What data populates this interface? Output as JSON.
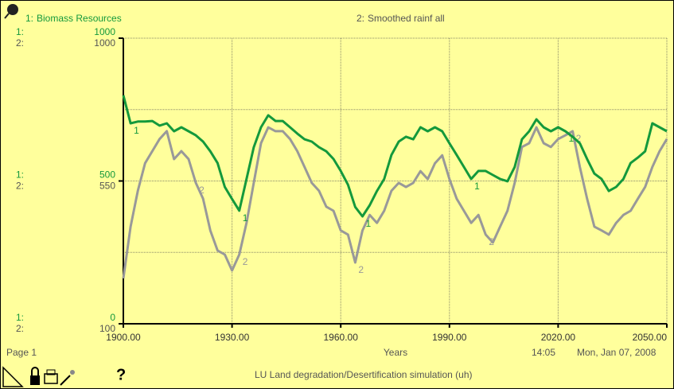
{
  "chart_data": {
    "type": "line",
    "xlabel": "Years",
    "page_label": "Page 1",
    "time": "14:05",
    "date": "Mon, Jan 07, 2008",
    "footer": "LU Land degradation/Desertification simulation (uh)",
    "help": "?",
    "x": [
      1900,
      1902,
      1904,
      1906,
      1908,
      1910,
      1912,
      1914,
      1916,
      1918,
      1920,
      1922,
      1924,
      1926,
      1928,
      1930,
      1932,
      1934,
      1936,
      1938,
      1940,
      1942,
      1944,
      1946,
      1948,
      1950,
      1952,
      1954,
      1956,
      1958,
      1960,
      1962,
      1964,
      1966,
      1968,
      1970,
      1972,
      1974,
      1976,
      1978,
      1980,
      1982,
      1984,
      1986,
      1988,
      1990,
      1992,
      1994,
      1996,
      1998,
      2000,
      2002,
      2004,
      2006,
      2008,
      2010,
      2012,
      2014,
      2016,
      2018,
      2020,
      2022,
      2024,
      2026,
      2028,
      2030,
      2032,
      2034,
      2036,
      2038,
      2040,
      2042,
      2044,
      2046,
      2048,
      2050
    ],
    "xlim": [
      1900,
      2050
    ],
    "xticks": [
      {
        "value": 1900,
        "label": "1900.00"
      },
      {
        "value": 1930,
        "label": "1930.00"
      },
      {
        "value": 1960,
        "label": "1960.00"
      },
      {
        "value": 1990,
        "label": "1990.00"
      },
      {
        "value": 2020,
        "label": "2020.00"
      },
      {
        "value": 2050,
        "label": "2050.00"
      }
    ],
    "ylim": [
      0,
      1000
    ],
    "yticks": [
      0,
      500,
      1000
    ],
    "y2lim": [
      100,
      1000
    ],
    "y2ticks": [
      100,
      550,
      1000
    ],
    "grid": true,
    "series": [
      {
        "name": "Biomass  Resources",
        "prefix": "1:",
        "marker": "1",
        "color": "#14993c",
        "axis": "y",
        "values": [
          800,
          702,
          708,
          708,
          710,
          694,
          702,
          674,
          688,
          674,
          660,
          638,
          604,
          563,
          479,
          437,
          396,
          507,
          618,
          688,
          730,
          710,
          710,
          688,
          666,
          646,
          638,
          618,
          604,
          577,
          535,
          487,
          409,
          376,
          415,
          465,
          507,
          591,
          638,
          655,
          646,
          688,
          674,
          688,
          674,
          632,
          591,
          549,
          507,
          535,
          535,
          521,
          507,
          499,
          549,
          646,
          674,
          716,
          688,
          674,
          688,
          674,
          655,
          632,
          577,
          526,
          507,
          465,
          479,
          507,
          563,
          582,
          604,
          702,
          688,
          674
        ]
      },
      {
        "name": "Smoothed rainf all",
        "prefix": "2:",
        "marker": "2",
        "color": "#999999",
        "axis": "y2",
        "values": [
          243,
          406,
          519,
          606,
          644,
          682,
          707,
          619,
          644,
          619,
          544,
          494,
          394,
          331,
          318,
          268,
          318,
          418,
          544,
          669,
          719,
          707,
          707,
          682,
          644,
          594,
          544,
          519,
          469,
          456,
          394,
          381,
          293,
          394,
          443,
          418,
          456,
          519,
          544,
          531,
          544,
          581,
          556,
          606,
          631,
          556,
          494,
          456,
          418,
          443,
          381,
          356,
          406,
          456,
          544,
          657,
          669,
          719,
          669,
          657,
          682,
          694,
          707,
          594,
          494,
          406,
          394,
          381,
          418,
          443,
          456,
          494,
          531,
          594,
          644,
          682
        ]
      }
    ]
  }
}
